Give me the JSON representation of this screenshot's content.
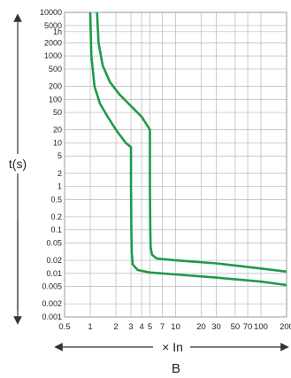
{
  "chart_data": {
    "type": "line",
    "title": "",
    "caption": "B",
    "ylabel": "t(s)",
    "xlabel": "× In",
    "x_scale": "log",
    "y_scale": "log",
    "xlim": [
      0.5,
      200
    ],
    "ylim": [
      0.001,
      10000
    ],
    "grid": true,
    "y_ticks": [
      {
        "value": 10000,
        "label": "10000"
      },
      {
        "value": 5000,
        "label": "5000"
      },
      {
        "value": 3600,
        "label": "1h"
      },
      {
        "value": 2000,
        "label": "2000"
      },
      {
        "value": 1000,
        "label": "1000"
      },
      {
        "value": 500,
        "label": "500"
      },
      {
        "value": 200,
        "label": "200"
      },
      {
        "value": 100,
        "label": "100"
      },
      {
        "value": 50,
        "label": "50"
      },
      {
        "value": 20,
        "label": "20"
      },
      {
        "value": 10,
        "label": "10"
      },
      {
        "value": 5,
        "label": "5"
      },
      {
        "value": 2,
        "label": "2"
      },
      {
        "value": 1,
        "label": "1"
      },
      {
        "value": 0.5,
        "label": "0.5"
      },
      {
        "value": 0.2,
        "label": "0.2"
      },
      {
        "value": 0.1,
        "label": "0.1"
      },
      {
        "value": 0.05,
        "label": "0.05"
      },
      {
        "value": 0.02,
        "label": "0.02"
      },
      {
        "value": 0.01,
        "label": "0.01"
      },
      {
        "value": 0.005,
        "label": "0.005"
      },
      {
        "value": 0.002,
        "label": "0.002"
      },
      {
        "value": 0.001,
        "label": "0.001"
      }
    ],
    "x_ticks": [
      {
        "value": 0.5,
        "label": "0.5"
      },
      {
        "value": 1,
        "label": "1"
      },
      {
        "value": 2,
        "label": "2"
      },
      {
        "value": 3,
        "label": "3"
      },
      {
        "value": 4,
        "label": "4"
      },
      {
        "value": 5,
        "label": "5"
      },
      {
        "value": 7,
        "label": "7"
      },
      {
        "value": 10,
        "label": "10"
      },
      {
        "value": 20,
        "label": "20"
      },
      {
        "value": 30,
        "label": "30"
      },
      {
        "value": 50,
        "label": "50"
      },
      {
        "value": 70,
        "label": "70"
      },
      {
        "value": 100,
        "label": "100"
      },
      {
        "value": 200,
        "label": "200"
      }
    ],
    "series": [
      {
        "color": "#1f9a4a",
        "points": [
          [
            1.0,
            10000
          ],
          [
            1.03,
            1000
          ],
          [
            1.12,
            200
          ],
          [
            1.3,
            80
          ],
          [
            1.6,
            40
          ],
          [
            2.0,
            20
          ],
          [
            2.6,
            10
          ],
          [
            3.0,
            8
          ],
          [
            3.0,
            1
          ],
          [
            3.03,
            0.1
          ],
          [
            3.06,
            0.03
          ],
          [
            3.15,
            0.016
          ],
          [
            3.6,
            0.012
          ],
          [
            5.0,
            0.0105
          ],
          [
            10,
            0.0095
          ],
          [
            30,
            0.008
          ],
          [
            100,
            0.0065
          ],
          [
            200,
            0.0054
          ]
        ]
      },
      {
        "color": "#1f9a4a",
        "points": [
          [
            1.2,
            10000
          ],
          [
            1.25,
            2000
          ],
          [
            1.4,
            600
          ],
          [
            1.7,
            250
          ],
          [
            2.2,
            130
          ],
          [
            3.0,
            70
          ],
          [
            4.0,
            40
          ],
          [
            5.0,
            20
          ],
          [
            5.0,
            1
          ],
          [
            5.05,
            0.1
          ],
          [
            5.1,
            0.04
          ],
          [
            5.3,
            0.027
          ],
          [
            6.0,
            0.022
          ],
          [
            10,
            0.02
          ],
          [
            30,
            0.017
          ],
          [
            100,
            0.013
          ],
          [
            200,
            0.011
          ]
        ]
      }
    ]
  }
}
